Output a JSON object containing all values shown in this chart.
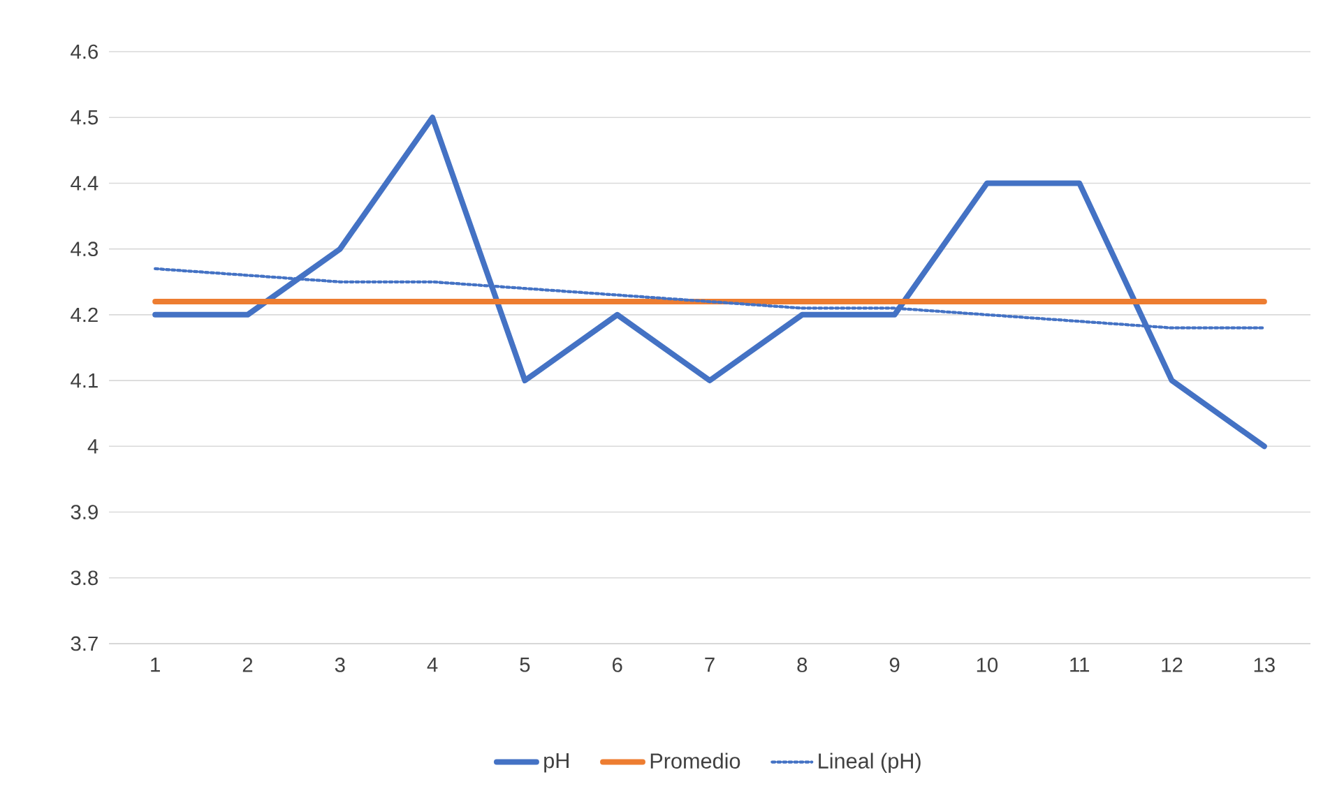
{
  "chart_data": {
    "type": "line",
    "categories": [
      "1",
      "2",
      "3",
      "4",
      "5",
      "6",
      "7",
      "8",
      "9",
      "10",
      "11",
      "12",
      "13"
    ],
    "series": [
      {
        "name": "pH",
        "color": "#4472c4",
        "line_style": "solid",
        "values": [
          4.2,
          4.2,
          4.3,
          4.5,
          4.1,
          4.2,
          4.1,
          4.2,
          4.2,
          4.4,
          4.4,
          4.1,
          4.0
        ]
      },
      {
        "name": "Promedio",
        "color": "#ed7d31",
        "line_style": "solid",
        "values": [
          4.22,
          4.22,
          4.22,
          4.22,
          4.22,
          4.22,
          4.22,
          4.22,
          4.22,
          4.22,
          4.22,
          4.22,
          4.22
        ]
      },
      {
        "name": "Lineal (pH)",
        "color": "#4472c4",
        "line_style": "dotted",
        "values": [
          4.27,
          4.26,
          4.25,
          4.25,
          4.24,
          4.23,
          4.22,
          4.21,
          4.21,
          4.2,
          4.19,
          4.18,
          4.18
        ]
      }
    ],
    "ylim": [
      3.7,
      4.6
    ],
    "yticks": [
      3.7,
      3.8,
      3.9,
      4,
      4.1,
      4.2,
      4.3,
      4.4,
      4.5,
      4.6
    ],
    "grid": "y",
    "legend": "bottom",
    "marker": "none"
  }
}
